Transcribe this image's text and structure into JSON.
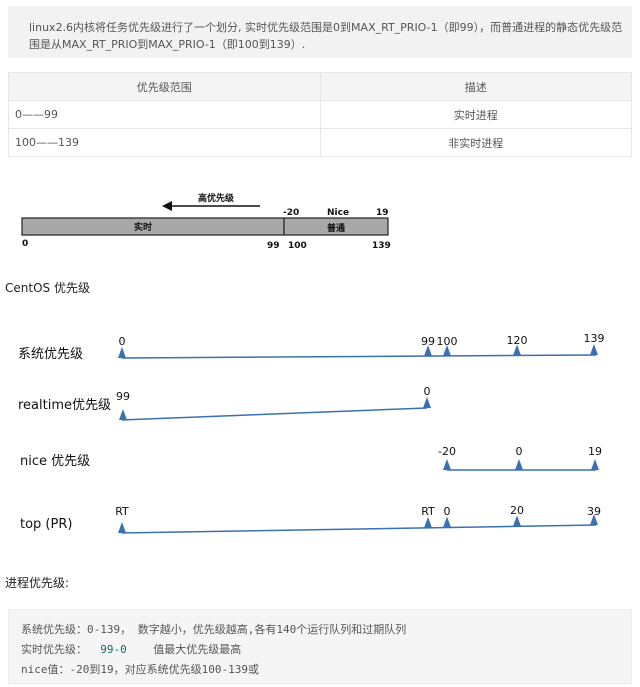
{
  "intro": "linux2.6内核将任务优先级进行了一个划分, 实时优先级范围是0到MAX_RT_PRIO-1（即99），而普通进程的静态优先级范围是从MAX_RT_PRIO到MAX_PRIO-1（即100到139）.",
  "table": {
    "headers": [
      "优先级范围",
      "描述"
    ],
    "rows": [
      {
        "range": "0——99",
        "desc": "实时进程"
      },
      {
        "range": "100——139",
        "desc": "非实时进程"
      }
    ]
  },
  "scan": {
    "arrow_label": "高优先级",
    "rt_label": "实时",
    "normal_label": "普通",
    "nice_label": "Nice",
    "top_ticks": [
      "-20",
      "19"
    ],
    "bottom_ticks": [
      "0",
      "99",
      "100",
      "139"
    ]
  },
  "centos_title": "CentOS 优先级",
  "diagram": {
    "rows": [
      {
        "label": "系统优先级",
        "ticks": [
          "0",
          "99",
          "100",
          "120",
          "139"
        ]
      },
      {
        "label": "realtime优先级",
        "ticks": [
          "99",
          "0"
        ]
      },
      {
        "label": "nice 优先级",
        "ticks": [
          "-20",
          "0",
          "19"
        ]
      },
      {
        "label": "top (PR)",
        "ticks": [
          "RT",
          "RT",
          "0",
          "20",
          "39"
        ]
      }
    ],
    "line_color": "#3b6fb3"
  },
  "process_title": "进程优先级:",
  "code": {
    "line1": "系统优先级：0-139， 数字越小，优先级越高,各有140个运行队列和过期队列",
    "line2_prefix": "实时优先级：  ",
    "line2_value": "99-0",
    "line2_suffix": "    值最大优先级最高",
    "line3": "nice值：-20到19，对应系统优先级100-139或"
  }
}
